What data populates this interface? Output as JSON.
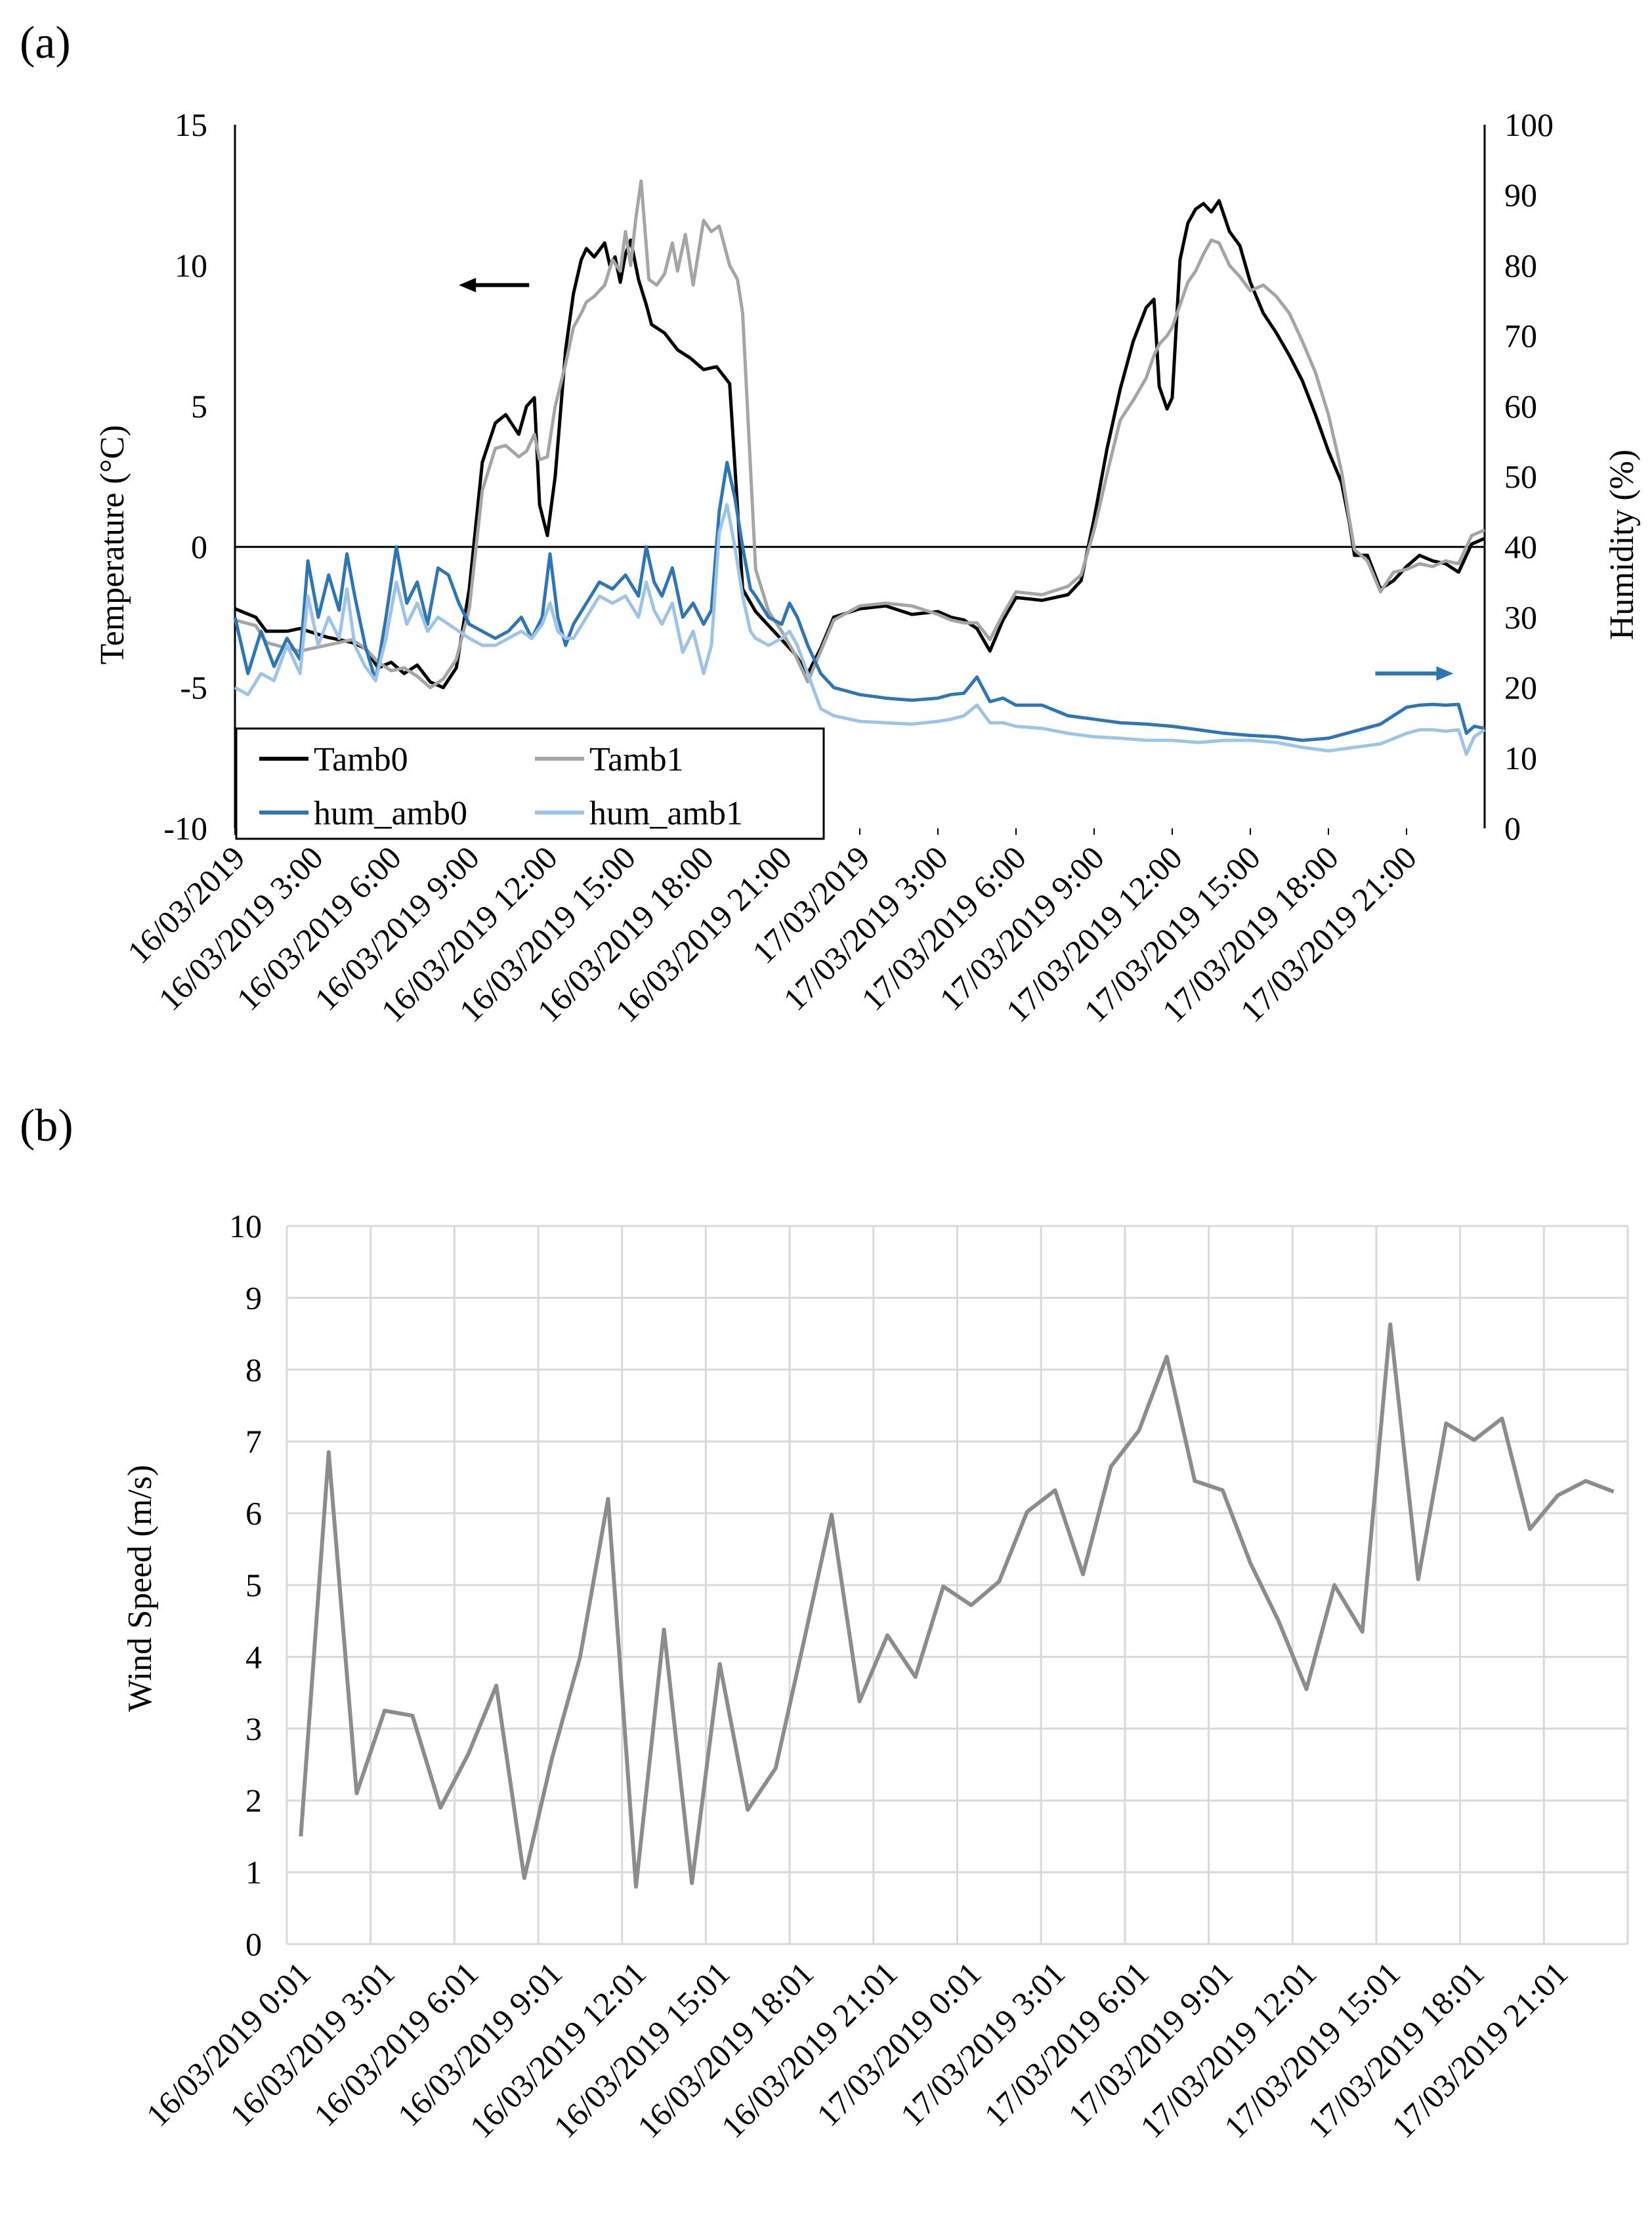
{
  "figure": {
    "panel_a_label": "(a)",
    "panel_b_label": "(b)"
  },
  "chart_data": [
    {
      "type": "line",
      "panel": "(a)",
      "ylabel": "Temperature (°C)",
      "y2label": "Humidity (%)",
      "ylim": [
        -10,
        15
      ],
      "yticks": [
        -10,
        -5,
        0,
        5,
        10,
        15
      ],
      "y2lim": [
        0,
        100
      ],
      "y2ticks": [
        0,
        10,
        20,
        30,
        40,
        50,
        60,
        70,
        80,
        90,
        100
      ],
      "xlim_hours": [
        0,
        48
      ],
      "x_tick_hours": [
        0,
        3,
        6,
        9,
        12,
        15,
        18,
        21,
        24,
        27,
        30,
        33,
        36,
        39,
        42,
        45
      ],
      "x_tick_labels": [
        "16/03/2019",
        "16/03/2019 3:00",
        "16/03/2019 6:00",
        "16/03/2019 9:00",
        "16/03/2019 12:00",
        "16/03/2019 15:00",
        "16/03/2019 18:00",
        "16/03/2019 21:00",
        "17/03/2019",
        "17/03/2019 3:00",
        "17/03/2019 6:00",
        "17/03/2019 9:00",
        "17/03/2019 12:00",
        "17/03/2019 15:00",
        "17/03/2019 18:00",
        "17/03/2019 21:00"
      ],
      "grid": false,
      "zero_line": true,
      "legend_position": "bottom-left",
      "arrows": [
        {
          "name": "temperature-axis-arrow",
          "direction": "left",
          "color": "#000000",
          "x_hours": [
            8.6,
            11.3
          ],
          "y": 9.3,
          "axis": "left"
        },
        {
          "name": "humidity-axis-arrow",
          "direction": "right",
          "color": "#2E75B6",
          "x_hours": [
            43.8,
            46.8
          ],
          "y": 22,
          "axis": "right"
        }
      ],
      "series": [
        {
          "name": "Tamb0",
          "axis": "left",
          "color": "#000000",
          "x": [
            0,
            0.8,
            1.2,
            2,
            2.5,
            3.5,
            4.5,
            5,
            5.5,
            6,
            6.5,
            7,
            7.5,
            8,
            8.5,
            9,
            9.5,
            10,
            10.4,
            10.9,
            11.2,
            11.5,
            11.7,
            12,
            12.3,
            12.7,
            13,
            13.3,
            13.5,
            13.8,
            14.2,
            14.4,
            14.6,
            14.8,
            15,
            15.2,
            15.5,
            15.8,
            16,
            16.5,
            17,
            17.5,
            18,
            18.5,
            19,
            19.5,
            20,
            20.5,
            21,
            21.5,
            22,
            22.5,
            23,
            24,
            25,
            26,
            27,
            27.5,
            28,
            28.5,
            29,
            29.5,
            30,
            31,
            32,
            32.5,
            33,
            33.5,
            34,
            34.5,
            35,
            35.3,
            35.5,
            35.8,
            36,
            36.3,
            36.6,
            36.9,
            37.2,
            37.5,
            37.8,
            38.2,
            38.6,
            39,
            39.5,
            40,
            40.5,
            41,
            41.5,
            42,
            42.5,
            42.8,
            43,
            43.5,
            44,
            44.5,
            45,
            45.5,
            46,
            46.5,
            47,
            47.5,
            48
          ],
          "y": [
            -2.2,
            -2.5,
            -3,
            -3,
            -2.9,
            -3.2,
            -3.4,
            -3.6,
            -4.3,
            -4.1,
            -4.5,
            -4.2,
            -4.8,
            -5.0,
            -4.3,
            -1.5,
            3.0,
            4.4,
            4.7,
            4.0,
            5.0,
            5.3,
            1.5,
            0.4,
            2.5,
            7.0,
            9.0,
            10.2,
            10.6,
            10.3,
            10.8,
            10.0,
            10.3,
            9.4,
            10.4,
            10.9,
            9.5,
            8.6,
            7.9,
            7.6,
            7.0,
            6.7,
            6.3,
            6.4,
            5.8,
            -1.5,
            -2.3,
            -2.8,
            -3.3,
            -3.8,
            -4.5,
            -3.6,
            -2.5,
            -2.2,
            -2.1,
            -2.4,
            -2.3,
            -2.5,
            -2.6,
            -2.9,
            -3.7,
            -2.6,
            -1.8,
            -1.9,
            -1.7,
            -1.2,
            1.0,
            3.5,
            5.6,
            7.3,
            8.5,
            8.8,
            5.7,
            4.9,
            5.3,
            10.2,
            11.5,
            12.0,
            12.2,
            11.9,
            12.3,
            11.2,
            10.7,
            9.4,
            8.3,
            7.6,
            6.8,
            5.9,
            4.7,
            3.4,
            2.3,
            0.9,
            -0.3,
            -0.3,
            -1.5,
            -1.2,
            -0.7,
            -0.3,
            -0.5,
            -0.6,
            -0.9,
            0.1,
            0.3
          ]
        },
        {
          "name": "Tamb1",
          "axis": "left",
          "color": "#A5A5A5",
          "x": [
            0,
            0.8,
            1.2,
            2,
            2.5,
            3.5,
            4.5,
            5,
            5.5,
            6,
            6.5,
            7,
            7.5,
            8,
            8.5,
            9,
            9.5,
            10,
            10.4,
            10.9,
            11.2,
            11.5,
            11.7,
            12,
            12.3,
            12.7,
            13,
            13.3,
            13.5,
            13.8,
            14.2,
            14.5,
            14.8,
            15,
            15.2,
            15.4,
            15.6,
            15.9,
            16.2,
            16.5,
            16.8,
            17,
            17.3,
            17.6,
            18,
            18.3,
            18.6,
            19,
            19.3,
            19.5,
            20,
            20.5,
            21,
            21.5,
            22,
            22.5,
            23,
            24,
            25,
            26,
            27,
            27.5,
            28,
            28.5,
            29,
            29.5,
            30,
            31,
            32,
            32.5,
            33,
            33.5,
            34,
            34.5,
            35,
            35.3,
            35.5,
            35.8,
            36,
            36.3,
            36.6,
            36.9,
            37.2,
            37.5,
            37.8,
            38.2,
            38.6,
            39,
            39.5,
            40,
            40.5,
            41,
            41.5,
            42,
            42.5,
            42.8,
            43,
            43.5,
            44,
            44.5,
            45,
            45.5,
            46,
            46.5,
            47,
            47.5,
            48
          ],
          "y": [
            -2.6,
            -2.8,
            -3.4,
            -3.6,
            -3.7,
            -3.5,
            -3.3,
            -3.6,
            -4.1,
            -4.4,
            -4.3,
            -4.6,
            -5.0,
            -4.7,
            -4.0,
            -2.2,
            2.0,
            3.5,
            3.6,
            3.2,
            3.4,
            4.0,
            3.1,
            3.2,
            5.0,
            6.5,
            7.8,
            8.3,
            8.7,
            8.9,
            9.3,
            10.2,
            9.8,
            11.2,
            10.0,
            11.7,
            13.0,
            9.5,
            9.3,
            9.7,
            10.8,
            9.8,
            11.1,
            9.3,
            11.6,
            11.2,
            11.4,
            10.0,
            9.5,
            8.3,
            -0.8,
            -2.3,
            -3.0,
            -3.8,
            -4.8,
            -3.7,
            -2.6,
            -2.1,
            -2.0,
            -2.1,
            -2.4,
            -2.6,
            -2.7,
            -2.7,
            -3.3,
            -2.4,
            -1.6,
            -1.7,
            -1.4,
            -1.0,
            0.6,
            2.6,
            4.5,
            5.2,
            6.0,
            6.8,
            7.2,
            7.5,
            7.8,
            8.6,
            9.4,
            9.8,
            10.4,
            10.9,
            10.8,
            10.0,
            9.6,
            9.1,
            9.3,
            8.9,
            8.3,
            7.3,
            6.2,
            4.7,
            2.7,
            1.0,
            -0.1,
            -0.5,
            -1.6,
            -0.9,
            -0.8,
            -0.6,
            -0.7,
            -0.5,
            -0.6,
            0.4,
            0.6
          ]
        },
        {
          "name": "hum_amb0",
          "axis": "right",
          "color": "#2E75B6",
          "x": [
            0,
            0.5,
            1,
            1.5,
            2,
            2.5,
            2.8,
            3.2,
            3.6,
            4,
            4.3,
            4.6,
            5,
            5.4,
            5.8,
            6.2,
            6.6,
            7,
            7.4,
            7.8,
            8.2,
            8.6,
            9,
            9.5,
            10,
            10.5,
            11,
            11.4,
            11.8,
            12.1,
            12.4,
            12.7,
            13,
            13.5,
            14,
            14.5,
            15,
            15.5,
            15.8,
            16.1,
            16.4,
            16.8,
            17.2,
            17.6,
            18,
            18.3,
            18.6,
            18.9,
            19.2,
            19.5,
            19.8,
            20,
            20.5,
            21,
            21.3,
            21.6,
            22,
            22.5,
            23,
            24,
            25,
            26,
            27,
            27.5,
            28,
            28.5,
            29,
            29.5,
            30,
            31,
            32,
            33,
            34,
            35,
            36,
            37,
            38,
            39,
            40,
            41,
            42,
            43,
            44,
            45,
            45.5,
            46,
            46.5,
            47,
            47.3,
            47.6,
            48
          ],
          "y": [
            30,
            22,
            28,
            23,
            27,
            24,
            38,
            30,
            36,
            31,
            39,
            33,
            26,
            21,
            30,
            40,
            32,
            35,
            29,
            37,
            36,
            32,
            29,
            28,
            27,
            28,
            30,
            27,
            30,
            39,
            30,
            26,
            29,
            32,
            35,
            34,
            36,
            33,
            40,
            35,
            33,
            37,
            30,
            32,
            29,
            31,
            45,
            52,
            47,
            40,
            34,
            33,
            30,
            29,
            32,
            30,
            26,
            22,
            20,
            19,
            18.5,
            18.2,
            18.5,
            19,
            19.2,
            21.5,
            18,
            18.5,
            17.5,
            17.5,
            16,
            15.5,
            15.0,
            14.8,
            14.5,
            14,
            13.5,
            13.2,
            13,
            12.5,
            12.8,
            13.8,
            14.8,
            17.2,
            17.5,
            17.6,
            17.5,
            17.6,
            13.5,
            14.5,
            14.2
          ]
        },
        {
          "name": "hum_amb1",
          "axis": "right",
          "color": "#9DC3E6",
          "x": [
            0,
            0.5,
            1,
            1.5,
            2,
            2.5,
            2.8,
            3.2,
            3.6,
            4,
            4.3,
            4.6,
            5,
            5.4,
            5.8,
            6.2,
            6.6,
            7,
            7.4,
            7.8,
            8.2,
            8.6,
            9,
            9.5,
            10,
            10.5,
            11,
            11.4,
            11.8,
            12.1,
            12.4,
            12.7,
            13,
            13.5,
            14,
            14.5,
            15,
            15.5,
            15.8,
            16.1,
            16.4,
            16.8,
            17.2,
            17.6,
            18,
            18.3,
            18.6,
            18.9,
            19.2,
            19.5,
            19.8,
            20,
            20.5,
            21,
            21.3,
            21.6,
            22,
            22.5,
            23,
            24,
            25,
            26,
            27,
            27.5,
            28,
            28.5,
            29,
            29.5,
            30,
            31,
            32,
            33,
            34,
            35,
            36,
            37,
            38,
            39,
            40,
            41,
            42,
            43,
            44,
            45,
            45.5,
            46,
            46.5,
            47,
            47.3,
            47.6,
            48
          ],
          "y": [
            20,
            19,
            22,
            21,
            26,
            22,
            33,
            26,
            30,
            27,
            34,
            26,
            23,
            21,
            27,
            35,
            29,
            32,
            28,
            30,
            29,
            28,
            27,
            26,
            26,
            27,
            28,
            27,
            29,
            32,
            28,
            27,
            27,
            30,
            33,
            32,
            33,
            30,
            35,
            31,
            29,
            32,
            25,
            28,
            22,
            26,
            42,
            46,
            40,
            33,
            28,
            27,
            26,
            27,
            28,
            26,
            22,
            17,
            16,
            15.2,
            15,
            14.8,
            15.2,
            15.5,
            16,
            17.5,
            15,
            15,
            14.5,
            14.2,
            13.5,
            13,
            12.8,
            12.5,
            12.5,
            12.2,
            12.5,
            12.5,
            12.2,
            11.5,
            11,
            11.5,
            12,
            13.5,
            14,
            14,
            13.8,
            14,
            10.5,
            13,
            14
          ]
        }
      ]
    },
    {
      "type": "line",
      "panel": "(b)",
      "ylabel": "Wind Speed (m/s)",
      "ylim": [
        0,
        10
      ],
      "yticks": [
        0,
        1,
        2,
        3,
        4,
        5,
        6,
        7,
        8,
        9,
        10
      ],
      "x_tick_labels": [
        "16/03/2019 0:01",
        "16/03/2019 3:01",
        "16/03/2019 6:01",
        "16/03/2019 9:01",
        "16/03/2019 12:01",
        "16/03/2019 15:01",
        "16/03/2019 18:01",
        "16/03/2019 21:01",
        "17/03/2019 0:01",
        "17/03/2019 3:01",
        "17/03/2019 6:01",
        "17/03/2019 9:01",
        "17/03/2019 12:01",
        "17/03/2019 15:01",
        "17/03/2019 18:01",
        "17/03/2019 21:01"
      ],
      "points_per_label": 3,
      "grid": true,
      "series": [
        {
          "name": "Wind Speed",
          "color": "#8C8C8C",
          "values": [
            1.5,
            6.85,
            2.1,
            3.25,
            3.18,
            1.9,
            2.65,
            3.6,
            0.92,
            2.6,
            4.0,
            6.2,
            0.8,
            4.38,
            0.85,
            3.9,
            1.87,
            2.45,
            4.2,
            5.98,
            3.38,
            4.3,
            3.72,
            4.98,
            4.72,
            5.05,
            6.02,
            6.32,
            5.15,
            6.65,
            7.15,
            8.18,
            6.45,
            6.32,
            5.3,
            4.5,
            3.55,
            5.0,
            4.35,
            8.63,
            5.08,
            7.25,
            7.02,
            7.32,
            5.78,
            6.25,
            6.45,
            6.3
          ]
        }
      ]
    }
  ]
}
